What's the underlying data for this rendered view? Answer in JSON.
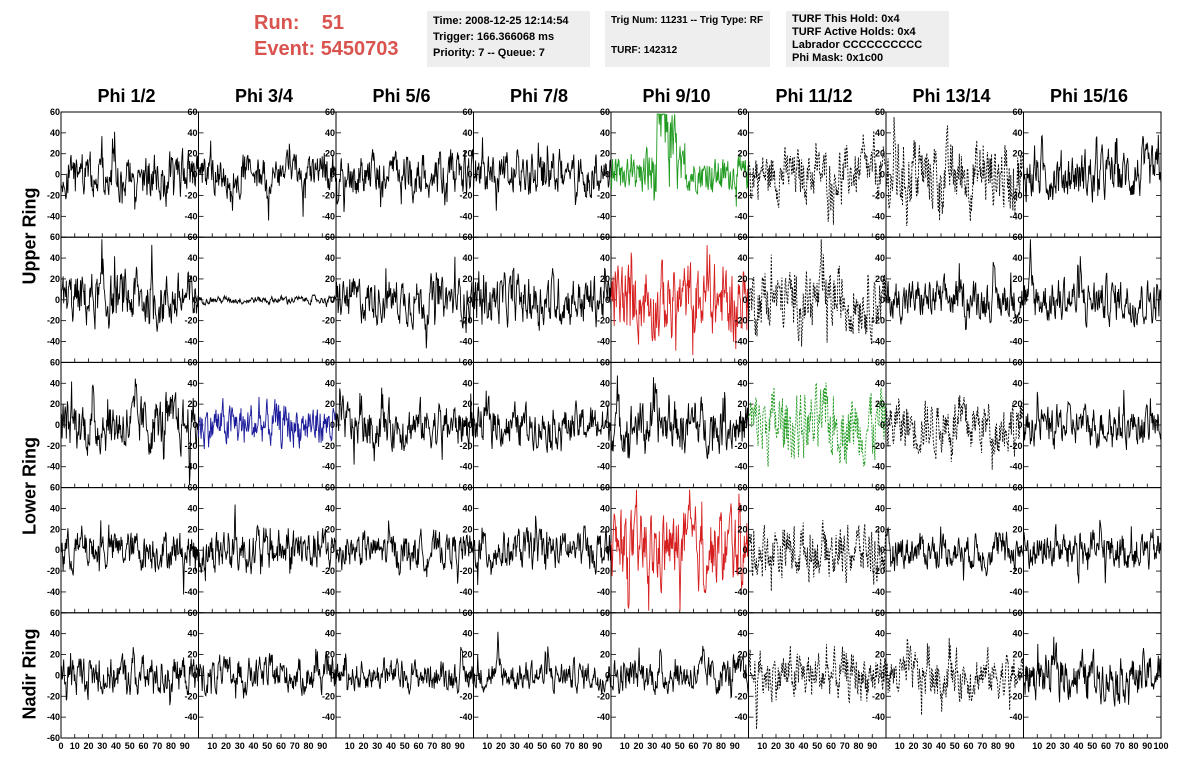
{
  "header": {
    "run_label": "Run:",
    "run_value": "51",
    "event_label": "Event:",
    "event_value": "5450703"
  },
  "info_time": {
    "time": "Time: 2008-12-25 12:14:54",
    "trigger": "Trigger: 166.366068 ms",
    "priority": "Priority: 7 -- Queue: 7"
  },
  "info_trig": {
    "trig": "Trig Num: 11231 -- Trig Type: RF",
    "turf": "TURF: 142312"
  },
  "info_turf": {
    "hold": "TURF This Hold: 0x4",
    "active": "TURF Active Holds: 0x4",
    "labrador": "Labrador CCCCCCCCCC",
    "phimask": "Phi Mask: 0x1c00"
  },
  "phi_labels": [
    "Phi 1/2",
    "Phi 3/4",
    "Phi 5/6",
    "Phi 7/8",
    "Phi 9/10",
    "Phi 11/12",
    "Phi 13/14",
    "Phi 15/16"
  ],
  "ring_labels": {
    "upper": "Upper Ring",
    "lower": "Lower Ring",
    "nadir": "Nadir Ring"
  },
  "chart_data": {
    "type": "line",
    "description_axes": "8 x 5 grid of waveform panels (voltage vs sample index)",
    "xlim": [
      0,
      100
    ],
    "ylim": [
      -60,
      60
    ],
    "x_ticks": [
      0,
      10,
      20,
      30,
      40,
      50,
      60,
      70,
      80,
      90,
      100
    ],
    "x_tick_labels_first": [
      "0",
      "10",
      "20",
      "30",
      "40",
      "50",
      "60",
      "70",
      "80",
      "90"
    ],
    "x_tick_labels_rest": [
      "10",
      "20",
      "30",
      "40",
      "50",
      "60",
      "70",
      "80",
      "90"
    ],
    "x_tick_label_last": "100",
    "y_ticks": [
      -60,
      -40,
      -20,
      0,
      20,
      40,
      60
    ],
    "y_tick_labels": [
      "-40",
      "-20",
      "0",
      "20",
      "40",
      "60"
    ],
    "y_tick_label_bottom": "-60",
    "n_samples": 260,
    "colors": {
      "black": "#000000",
      "green": "#1f9a1f",
      "red": "#d62020",
      "blue": "#1a1a9a"
    },
    "rows": [
      {
        "ring": "upper",
        "panels": [
          {
            "color": "black",
            "style": "solid",
            "amplitude": 18
          },
          {
            "color": "black",
            "style": "solid",
            "amplitude": 16
          },
          {
            "color": "black",
            "style": "solid",
            "amplitude": 18
          },
          {
            "color": "black",
            "style": "solid",
            "amplitude": 18
          },
          {
            "color": "green",
            "style": "solid",
            "amplitude": 25
          },
          {
            "color": "black",
            "style": "dashed",
            "amplitude": 20
          },
          {
            "color": "black",
            "style": "dashed",
            "amplitude": 28
          },
          {
            "color": "black",
            "style": "solid",
            "amplitude": 20
          }
        ]
      },
      {
        "ring": "upper",
        "panels": [
          {
            "color": "black",
            "style": "solid",
            "amplitude": 22
          },
          {
            "color": "black",
            "style": "solid",
            "amplitude": 3
          },
          {
            "color": "black",
            "style": "solid",
            "amplitude": 18
          },
          {
            "color": "black",
            "style": "solid",
            "amplitude": 20
          },
          {
            "color": "red",
            "style": "solid",
            "amplitude": 30
          },
          {
            "color": "black",
            "style": "dashed",
            "amplitude": 25
          },
          {
            "color": "black",
            "style": "solid",
            "amplitude": 16
          },
          {
            "color": "black",
            "style": "solid",
            "amplitude": 18
          }
        ]
      },
      {
        "ring": "lower",
        "panels": [
          {
            "color": "black",
            "style": "solid",
            "amplitude": 22
          },
          {
            "color": "blue",
            "style": "solid",
            "amplitude": 18
          },
          {
            "color": "black",
            "style": "solid",
            "amplitude": 18
          },
          {
            "color": "black",
            "style": "solid",
            "amplitude": 16
          },
          {
            "color": "black",
            "style": "solid",
            "amplitude": 20
          },
          {
            "color": "green",
            "style": "dashed",
            "amplitude": 28
          },
          {
            "color": "black",
            "style": "dashed",
            "amplitude": 22
          },
          {
            "color": "black",
            "style": "solid",
            "amplitude": 16
          }
        ]
      },
      {
        "ring": "lower",
        "panels": [
          {
            "color": "black",
            "style": "solid",
            "amplitude": 16
          },
          {
            "color": "black",
            "style": "solid",
            "amplitude": 18
          },
          {
            "color": "black",
            "style": "solid",
            "amplitude": 14
          },
          {
            "color": "black",
            "style": "solid",
            "amplitude": 16
          },
          {
            "color": "red",
            "style": "solid",
            "amplitude": 30
          },
          {
            "color": "black",
            "style": "dashed",
            "amplitude": 22
          },
          {
            "color": "black",
            "style": "solid",
            "amplitude": 14
          },
          {
            "color": "black",
            "style": "solid",
            "amplitude": 16
          }
        ]
      },
      {
        "ring": "nadir",
        "panels": [
          {
            "color": "black",
            "style": "solid",
            "amplitude": 16
          },
          {
            "color": "black",
            "style": "solid",
            "amplitude": 14
          },
          {
            "color": "black",
            "style": "solid",
            "amplitude": 12
          },
          {
            "color": "black",
            "style": "solid",
            "amplitude": 12
          },
          {
            "color": "black",
            "style": "solid",
            "amplitude": 14
          },
          {
            "color": "black",
            "style": "dashed",
            "amplitude": 20
          },
          {
            "color": "black",
            "style": "dashed",
            "amplitude": 18
          },
          {
            "color": "black",
            "style": "solid",
            "amplitude": 18
          }
        ]
      }
    ]
  }
}
